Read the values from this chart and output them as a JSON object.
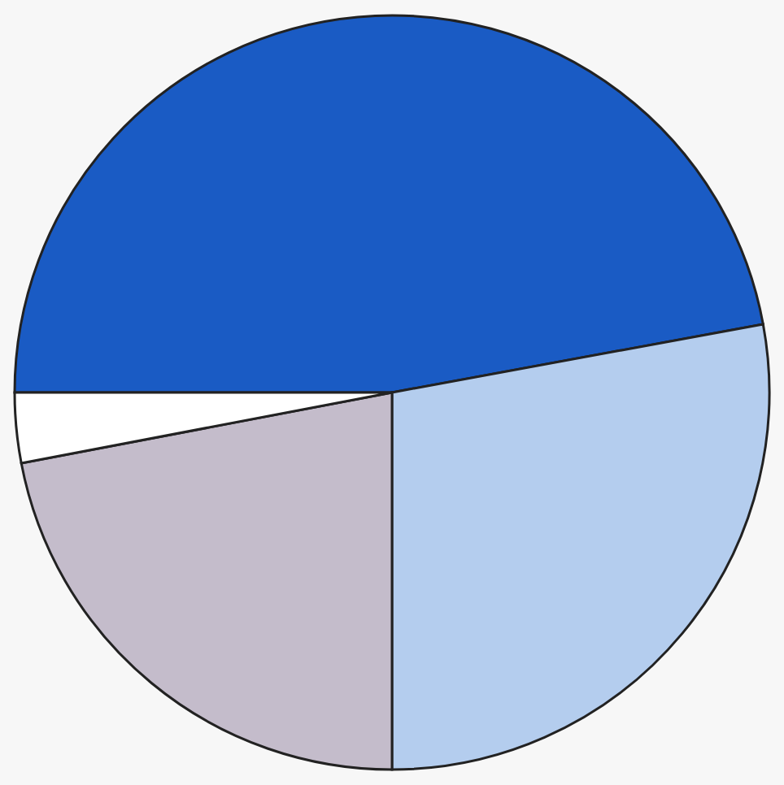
{
  "chart_data": {
    "type": "pie",
    "categories": [
      null,
      null,
      null,
      null
    ],
    "values": [
      47.1,
      27.9,
      22,
      3
    ],
    "colors": [
      "#1a5bc4",
      "#b4cdee",
      "#c4bccb",
      "#ffffff"
    ]
  }
}
